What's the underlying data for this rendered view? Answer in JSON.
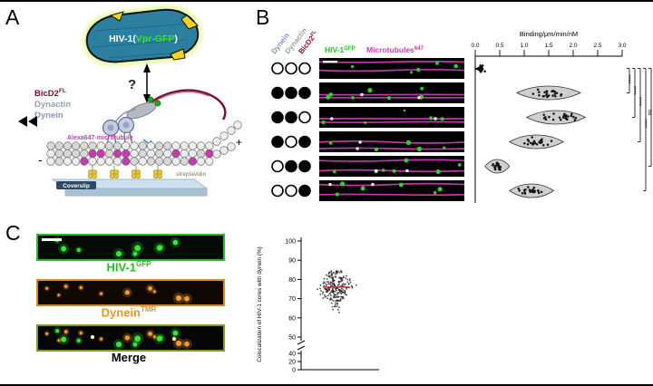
{
  "figure": {
    "panel_a_label": "A",
    "panel_b_label": "B",
    "panel_c_label": "C"
  },
  "colors": {
    "gfp_green": "#2fd12f",
    "mt_magenta": "#c63cb0",
    "dynein_blue": "#8496c8",
    "dynactin_gray": "#98a0a8",
    "bicd2_maroon": "#7a0f2e",
    "tmr_orange": "#f0941e",
    "capsid_teal": "#2b7f9f",
    "patch_yellow": "#f6d415"
  },
  "panel_a": {
    "capsid_label": {
      "pre": "HIV-1(",
      "gfp": "Vpr-GFP",
      "post": ")"
    },
    "proteins": {
      "bicd2": "BicD2",
      "bicd2_sup": "FL",
      "dynactin": "Dynactin",
      "dynein": "Dynein"
    },
    "question_mark": "?",
    "microtubule_label": "Alexa647-microtubule",
    "coverslip_label": "Coverslip",
    "biotin_label": "biotin",
    "streptavidin_label": "streptavidin",
    "minus_end": "-",
    "plus_end": "+"
  },
  "panel_b": {
    "condition_labels": {
      "dynein": "Dynein",
      "dynactin": "Dynactin",
      "bicd2": "BicD2",
      "bicd2_sup": "FL"
    },
    "headers": {
      "hiv": "HIV-1",
      "hiv_sup": "GFP",
      "microtubules": "Microtubules",
      "microtubules_sup": "647"
    },
    "conditions": [
      [
        0,
        0,
        0
      ],
      [
        1,
        1,
        1
      ],
      [
        1,
        1,
        0
      ],
      [
        1,
        0,
        1
      ],
      [
        0,
        1,
        1
      ],
      [
        0,
        0,
        1
      ]
    ]
  },
  "panel_c": {
    "labels": {
      "hiv": "HIV-1",
      "hiv_sup": "GFP",
      "dynein": "Dynein",
      "dynein_sup": "TMR",
      "merge": "Merge"
    }
  },
  "chart_data": [
    {
      "type": "violin-scatter",
      "title": "Binding/μm/min/nM",
      "orientation": "horizontal",
      "xlim": [
        0,
        3.0
      ],
      "xticks": [
        "0.0",
        "0.5",
        "1.0",
        "1.5",
        "2.0",
        "2.5",
        "3.0"
      ],
      "rows": [
        {
          "condition": "none",
          "center": 0.1,
          "halfwidth": 0.13,
          "n": 30,
          "violin": false
        },
        {
          "condition": "dynein+dynactin+BicD2FL",
          "center": 1.5,
          "halfwidth": 0.65,
          "n": 24,
          "violin": true
        },
        {
          "condition": "dynein+dynactin",
          "center": 1.65,
          "halfwidth": 0.6,
          "n": 24,
          "violin": true
        },
        {
          "condition": "dynein+BicD2FL",
          "center": 1.25,
          "halfwidth": 0.55,
          "n": 22,
          "violin": true
        },
        {
          "condition": "dynactin+BicD2FL",
          "center": 0.45,
          "halfwidth": 0.25,
          "n": 20,
          "violin": true
        },
        {
          "condition": "BicD2FL",
          "center": 1.15,
          "halfwidth": 0.45,
          "n": 22,
          "violin": true
        }
      ],
      "significance": [
        {
          "label": "****",
          "from": 0,
          "to": 1
        },
        {
          "label": "****",
          "from": 0,
          "to": 2
        },
        {
          "label": "****",
          "from": 0,
          "to": 3
        },
        {
          "label": "****",
          "from": 0,
          "to": 5
        },
        {
          "label": "ns",
          "from": 0,
          "to": 4
        }
      ]
    },
    {
      "type": "scatter",
      "ylabel": "Colocalization of HIV-1 cores with dynein (%)",
      "yaxis": {
        "upper_ticks": [
          100,
          90,
          80,
          70,
          60,
          50
        ],
        "lower_ticks": [
          40,
          20,
          0
        ],
        "axis_break_between": [
          40,
          50
        ]
      },
      "points": {
        "n": 240,
        "mean": 76,
        "sd": 5,
        "min": 58,
        "max": 93
      },
      "mean_line": 76,
      "mean_color": "#d22c2c"
    }
  ]
}
